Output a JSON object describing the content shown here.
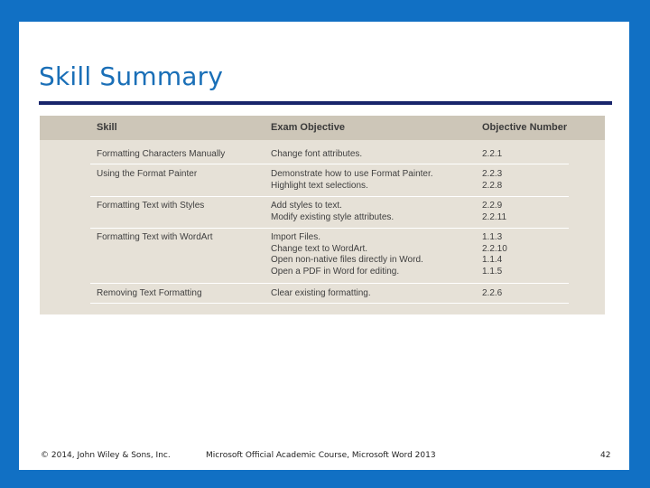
{
  "slide": {
    "title": "Skill Summary",
    "table": {
      "headers": [
        "Skill",
        "Exam Objective",
        "Objective Number"
      ],
      "rows": [
        {
          "skill": "Formatting Characters Manually",
          "objectives": [
            "Change font attributes."
          ],
          "numbers": [
            "2.2.1"
          ]
        },
        {
          "skill": "Using the Format Painter",
          "objectives": [
            "Demonstrate how to use Format Painter.",
            "Highlight text selections."
          ],
          "numbers": [
            "2.2.3",
            "2.2.8"
          ]
        },
        {
          "skill": "Formatting Text with Styles",
          "objectives": [
            "Add styles to text.",
            "Modify existing style attributes."
          ],
          "numbers": [
            "2.2.9",
            "2.2.11"
          ]
        },
        {
          "skill": "Formatting Text with WordArt",
          "objectives": [
            "Import Files.",
            "Change text to WordArt.",
            "Open non-native files directly in Word.",
            "Open a PDF in Word for editing."
          ],
          "numbers": [
            "1.1.3",
            "2.2.10",
            "1.1.4",
            "1.1.5"
          ]
        },
        {
          "skill": "Removing Text Formatting",
          "objectives": [
            "Clear existing formatting."
          ],
          "numbers": [
            "2.2.6"
          ]
        }
      ]
    },
    "footer": {
      "copyright": "© 2014, John Wiley & Sons, Inc.",
      "course": "Microsoft Official Academic Course, Microsoft Word 2013",
      "page_number": "42"
    }
  },
  "colors": {
    "background": "#1170c4",
    "title": "#1a6fb7",
    "rule": "#18256b",
    "table_body": "#e6e1d7",
    "table_header": "#cdc6b8"
  }
}
